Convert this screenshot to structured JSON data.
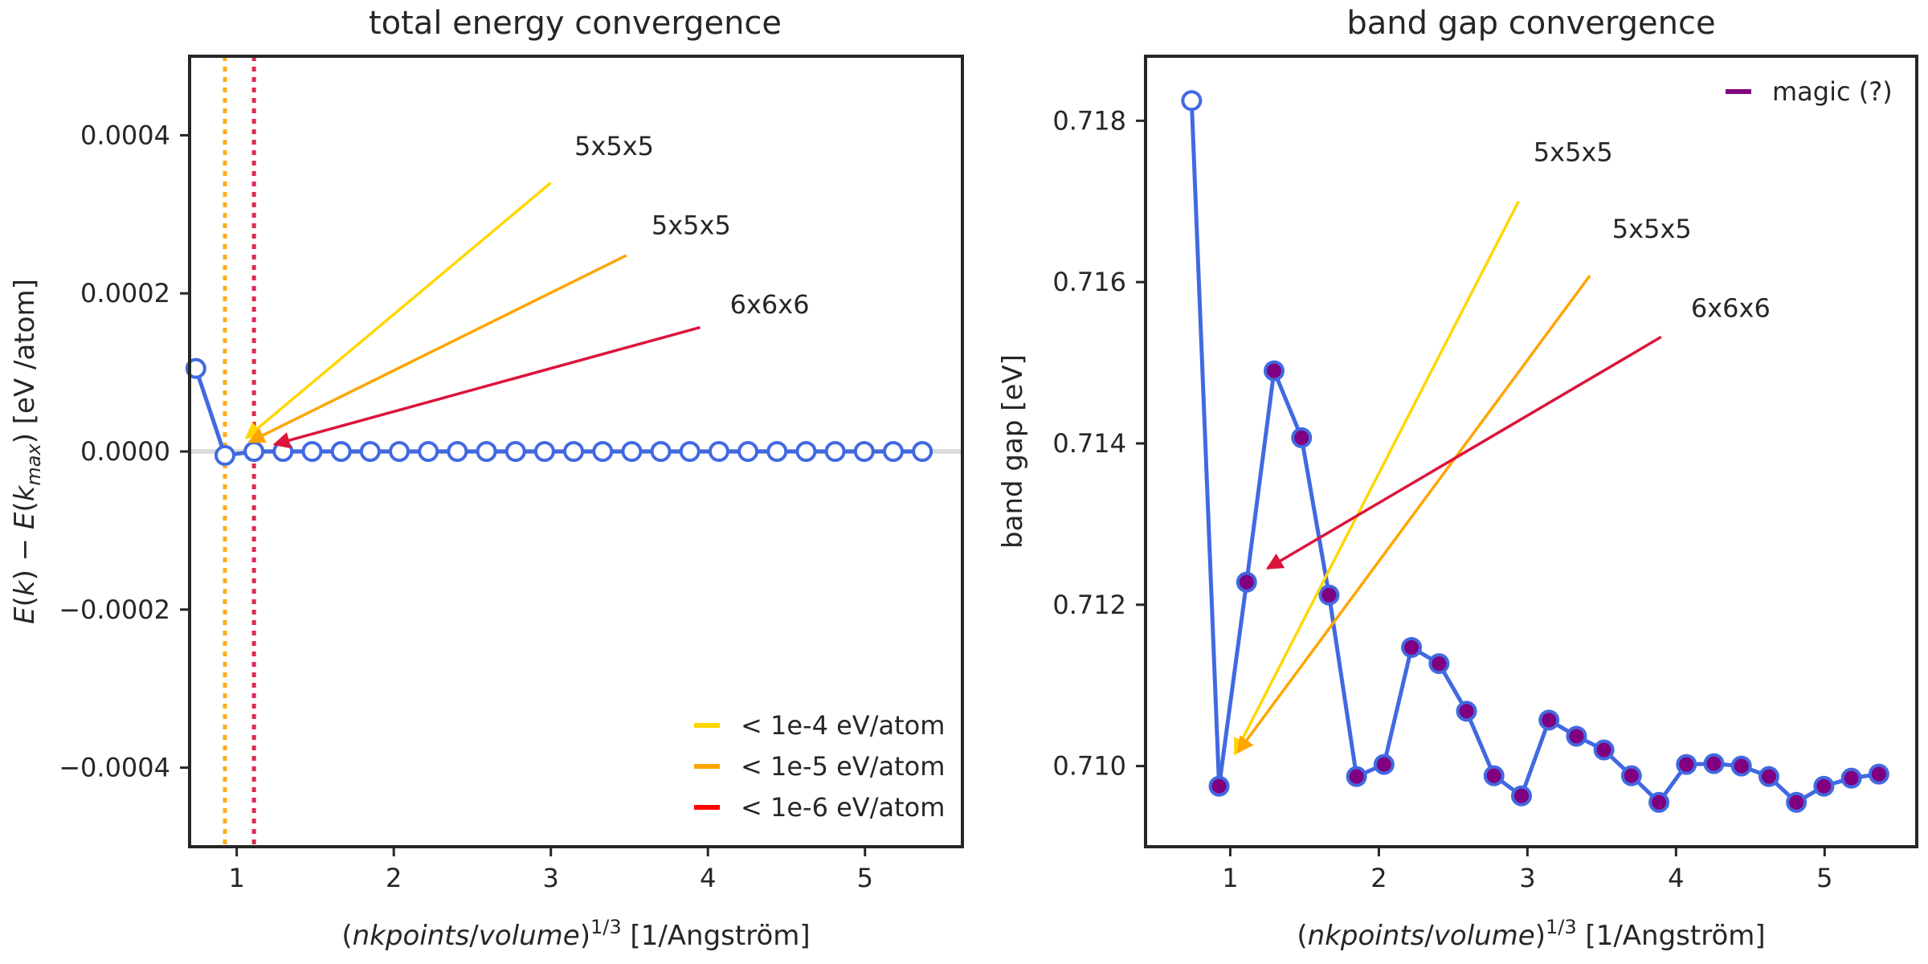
{
  "chart_data": [
    {
      "type": "line",
      "title": "total energy convergence",
      "xlabel": "(nkpoints/volume)^1/3 [1/Angström]",
      "ylabel": "E(k) − E(k_max) [eV /atom]",
      "xlim": [
        0.7,
        5.62
      ],
      "ylim": [
        -0.0005,
        0.0005
      ],
      "xticks": [
        1,
        2,
        3,
        4,
        5
      ],
      "xtick_labels": [
        "1",
        "2",
        "3",
        "4",
        "5"
      ],
      "yticks": [
        -0.0004,
        -0.0002,
        0.0,
        0.0002,
        0.0004
      ],
      "ytick_labels": [
        "−0.0004",
        "−0.0002",
        "0.0000",
        "0.0002",
        "0.0004"
      ],
      "series": [
        {
          "x": [
            0.74,
            0.925,
            1.11,
            1.295,
            1.48,
            1.665,
            1.85,
            2.035,
            2.22,
            2.405,
            2.59,
            2.775,
            2.96,
            3.145,
            3.33,
            3.515,
            3.7,
            3.885,
            4.07,
            4.255,
            4.44,
            4.625,
            4.81,
            4.995,
            5.18,
            5.365
          ],
          "y": [
            0.000105,
            -5e-06,
            0.0,
            0.0,
            0.0,
            0.0,
            0.0,
            0.0,
            0.0,
            0.0,
            0.0,
            0.0,
            0.0,
            0.0,
            0.0,
            0.0,
            0.0,
            0.0,
            0.0,
            0.0,
            0.0,
            0.0,
            0.0,
            0.0,
            0.0,
            0.0
          ],
          "color": "#4169e1"
        }
      ],
      "vlines": [
        {
          "x": 0.925,
          "color": "#ffa500"
        },
        {
          "x": 1.11,
          "color": "#dc143c"
        }
      ],
      "legend": {
        "placement": "lower-right",
        "entries": [
          {
            "label": "< 1e-4 eV/atom",
            "color": "#ffd700"
          },
          {
            "label": "< 1e-5 eV/atom",
            "color": "#ffa500"
          },
          {
            "label": "< 1e-6 eV/atom",
            "color": "#ff0000"
          }
        ]
      },
      "annotations": [
        {
          "text": "5x5x5",
          "color": "#ffd700",
          "arrow_from": [
            3.0,
            0.00034
          ],
          "arrow_to": [
            1.06,
            1.7e-05
          ],
          "text_at": [
            3.15,
            0.000375
          ]
        },
        {
          "text": "5x5x5",
          "color": "#ffa500",
          "arrow_from": [
            3.48,
            0.000248
          ],
          "arrow_to": [
            1.08,
            1.2e-05
          ],
          "text_at": [
            3.64,
            0.000275
          ]
        },
        {
          "text": "6x6x6",
          "color": "#dc143c",
          "arrow_from": [
            3.95,
            0.000157
          ],
          "arrow_to": [
            1.24,
            9e-06
          ],
          "text_at": [
            4.14,
            0.000175
          ]
        }
      ]
    },
    {
      "type": "line",
      "title": "band gap convergence",
      "xlabel": "(nkpoints/volume)^1/3 [1/Angström]",
      "ylabel": "band gap [eV]",
      "xlim": [
        0.43,
        5.62
      ],
      "ylim": [
        0.709,
        0.7188
      ],
      "xticks": [
        1,
        2,
        3,
        4,
        5
      ],
      "xtick_labels": [
        "1",
        "2",
        "3",
        "4",
        "5"
      ],
      "yticks": [
        0.71,
        0.712,
        0.714,
        0.716,
        0.718
      ],
      "ytick_labels": [
        "0.710",
        "0.712",
        "0.714",
        "0.716",
        "0.718"
      ],
      "series": [
        {
          "x": [
            0.74,
            0.925,
            1.11,
            1.295,
            1.48,
            1.665,
            1.85,
            2.035,
            2.22,
            2.405,
            2.59,
            2.775,
            2.96,
            3.145,
            3.33,
            3.515,
            3.7,
            3.885,
            4.07,
            4.255,
            4.44,
            4.625,
            4.81,
            4.995,
            5.18,
            5.365
          ],
          "y": [
            0.71825,
            0.70975,
            0.71228,
            0.7149,
            0.71407,
            0.71212,
            0.70987,
            0.71002,
            0.71147,
            0.71127,
            0.71068,
            0.70988,
            0.70963,
            0.71057,
            0.71037,
            0.7102,
            0.70988,
            0.70955,
            0.71002,
            0.71003,
            0.71,
            0.70987,
            0.70955,
            0.70975,
            0.70985,
            0.7099
          ],
          "color": "#4169e1",
          "magic_start_index": 1
        }
      ],
      "legend": {
        "placement": "top-right",
        "entries": [
          {
            "label": "magic (?)",
            "color": "#800080"
          }
        ]
      },
      "annotations": [
        {
          "text": "5x5x5",
          "color": "#ffd700",
          "arrow_from": [
            2.94,
            0.717
          ],
          "arrow_to": [
            1.03,
            0.71015
          ],
          "text_at": [
            3.04,
            0.7175
          ]
        },
        {
          "text": "5x5x5",
          "color": "#ffa500",
          "arrow_from": [
            3.42,
            0.71608
          ],
          "arrow_to": [
            1.05,
            0.71017
          ],
          "text_at": [
            3.57,
            0.71655
          ]
        },
        {
          "text": "6x6x6",
          "color": "#dc143c",
          "arrow_from": [
            3.9,
            0.71532
          ],
          "arrow_to": [
            1.25,
            0.71245
          ],
          "text_at": [
            4.1,
            0.71557
          ]
        }
      ]
    }
  ]
}
